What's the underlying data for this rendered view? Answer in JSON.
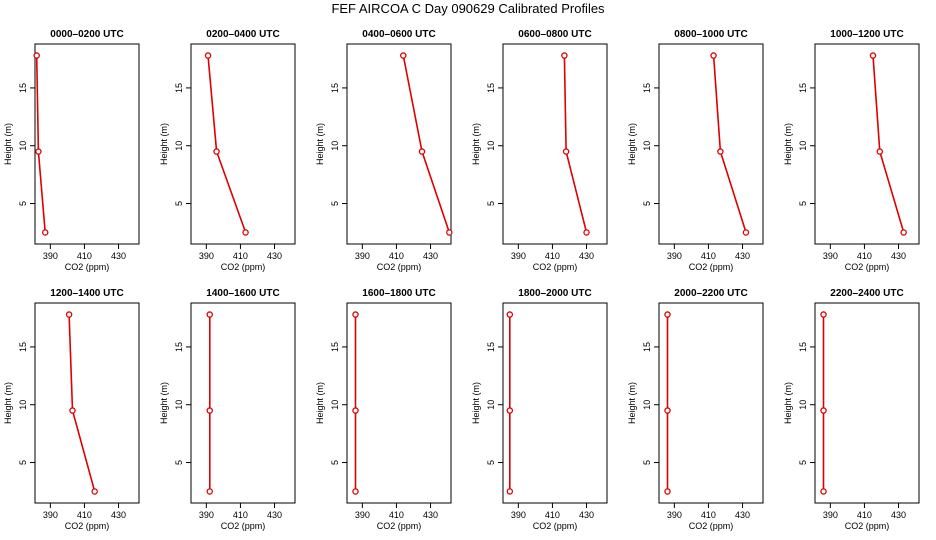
{
  "title": "FEF AIRCOA C  Day 090629  Calibrated Profiles",
  "chart_data": [
    {
      "type": "line",
      "title": "0000–0200 UTC",
      "xlabel": "CO2 (ppm)",
      "ylabel": "Height (m)",
      "xlim": [
        381,
        442
      ],
      "ylim": [
        1.5,
        18.8
      ],
      "xticks": [
        390,
        410,
        430
      ],
      "yticks": [
        5,
        10,
        15
      ],
      "series": [
        {
          "name": "profile",
          "x": [
            387,
            383,
            382
          ],
          "y": [
            2.5,
            9.5,
            17.8
          ]
        }
      ]
    },
    {
      "type": "line",
      "title": "0200–0400 UTC",
      "xlabel": "CO2 (ppm)",
      "ylabel": "Height (m)",
      "xlim": [
        381,
        442
      ],
      "ylim": [
        1.5,
        18.8
      ],
      "xticks": [
        390,
        410,
        430
      ],
      "yticks": [
        5,
        10,
        15
      ],
      "series": [
        {
          "name": "profile",
          "x": [
            413,
            396,
            391
          ],
          "y": [
            2.5,
            9.5,
            17.8
          ]
        }
      ]
    },
    {
      "type": "line",
      "title": "0400–0600 UTC",
      "xlabel": "CO2 (ppm)",
      "ylabel": "Height (m)",
      "xlim": [
        381,
        442
      ],
      "ylim": [
        1.5,
        18.8
      ],
      "xticks": [
        390,
        410,
        430
      ],
      "yticks": [
        5,
        10,
        15
      ],
      "series": [
        {
          "name": "profile",
          "x": [
            441,
            425,
            414
          ],
          "y": [
            2.5,
            9.5,
            17.8
          ]
        }
      ]
    },
    {
      "type": "line",
      "title": "0600–0800 UTC",
      "xlabel": "CO2 (ppm)",
      "ylabel": "Height (m)",
      "xlim": [
        381,
        442
      ],
      "ylim": [
        1.5,
        18.8
      ],
      "xticks": [
        390,
        410,
        430
      ],
      "yticks": [
        5,
        10,
        15
      ],
      "series": [
        {
          "name": "profile",
          "x": [
            430,
            418,
            417
          ],
          "y": [
            2.5,
            9.5,
            17.8
          ]
        }
      ]
    },
    {
      "type": "line",
      "title": "0800–1000 UTC",
      "xlabel": "CO2 (ppm)",
      "ylabel": "Height (m)",
      "xlim": [
        381,
        442
      ],
      "ylim": [
        1.5,
        18.8
      ],
      "xticks": [
        390,
        410,
        430
      ],
      "yticks": [
        5,
        10,
        15
      ],
      "series": [
        {
          "name": "profile",
          "x": [
            432,
            417,
            413
          ],
          "y": [
            2.5,
            9.5,
            17.8
          ]
        }
      ]
    },
    {
      "type": "line",
      "title": "1000–1200 UTC",
      "xlabel": "CO2 (ppm)",
      "ylabel": "Height (m)",
      "xlim": [
        381,
        442
      ],
      "ylim": [
        1.5,
        18.8
      ],
      "xticks": [
        390,
        410,
        430
      ],
      "yticks": [
        5,
        10,
        15
      ],
      "series": [
        {
          "name": "profile",
          "x": [
            433,
            419,
            415
          ],
          "y": [
            2.5,
            9.5,
            17.8
          ]
        }
      ]
    },
    {
      "type": "line",
      "title": "1200–1400 UTC",
      "xlabel": "CO2 (ppm)",
      "ylabel": "Height (m)",
      "xlim": [
        381,
        442
      ],
      "ylim": [
        1.5,
        18.8
      ],
      "xticks": [
        390,
        410,
        430
      ],
      "yticks": [
        5,
        10,
        15
      ],
      "series": [
        {
          "name": "profile",
          "x": [
            416,
            403,
            401
          ],
          "y": [
            2.5,
            9.5,
            17.8
          ]
        }
      ]
    },
    {
      "type": "line",
      "title": "1400–1600 UTC",
      "xlabel": "CO2 (ppm)",
      "ylabel": "Height (m)",
      "xlim": [
        381,
        442
      ],
      "ylim": [
        1.5,
        18.8
      ],
      "xticks": [
        390,
        410,
        430
      ],
      "yticks": [
        5,
        10,
        15
      ],
      "series": [
        {
          "name": "profile",
          "x": [
            392,
            392,
            392
          ],
          "y": [
            2.5,
            9.5,
            17.8
          ]
        }
      ]
    },
    {
      "type": "line",
      "title": "1600–1800 UTC",
      "xlabel": "CO2 (ppm)",
      "ylabel": "Height (m)",
      "xlim": [
        381,
        442
      ],
      "ylim": [
        1.5,
        18.8
      ],
      "xticks": [
        390,
        410,
        430
      ],
      "yticks": [
        5,
        10,
        15
      ],
      "series": [
        {
          "name": "profile",
          "x": [
            386,
            386,
            386
          ],
          "y": [
            2.5,
            9.5,
            17.8
          ]
        }
      ]
    },
    {
      "type": "line",
      "title": "1800–2000 UTC",
      "xlabel": "CO2 (ppm)",
      "ylabel": "Height (m)",
      "xlim": [
        381,
        442
      ],
      "ylim": [
        1.5,
        18.8
      ],
      "xticks": [
        390,
        410,
        430
      ],
      "yticks": [
        5,
        10,
        15
      ],
      "series": [
        {
          "name": "profile",
          "x": [
            385,
            385,
            385
          ],
          "y": [
            2.5,
            9.5,
            17.8
          ]
        }
      ]
    },
    {
      "type": "line",
      "title": "2000–2200 UTC",
      "xlabel": "CO2 (ppm)",
      "ylabel": "Height (m)",
      "xlim": [
        381,
        442
      ],
      "ylim": [
        1.5,
        18.8
      ],
      "xticks": [
        390,
        410,
        430
      ],
      "yticks": [
        5,
        10,
        15
      ],
      "series": [
        {
          "name": "profile",
          "x": [
            386,
            386,
            386
          ],
          "y": [
            2.5,
            9.5,
            17.8
          ]
        }
      ]
    },
    {
      "type": "line",
      "title": "2200–2400 UTC",
      "xlabel": "CO2 (ppm)",
      "ylabel": "Height (m)",
      "xlim": [
        381,
        442
      ],
      "ylim": [
        1.5,
        18.8
      ],
      "xticks": [
        390,
        410,
        430
      ],
      "yticks": [
        5,
        10,
        15
      ],
      "series": [
        {
          "name": "profile",
          "x": [
            386,
            386,
            386
          ],
          "y": [
            2.5,
            9.5,
            17.8
          ]
        }
      ]
    }
  ],
  "colors": {
    "series": "#dd0000",
    "axis": "#000000"
  }
}
